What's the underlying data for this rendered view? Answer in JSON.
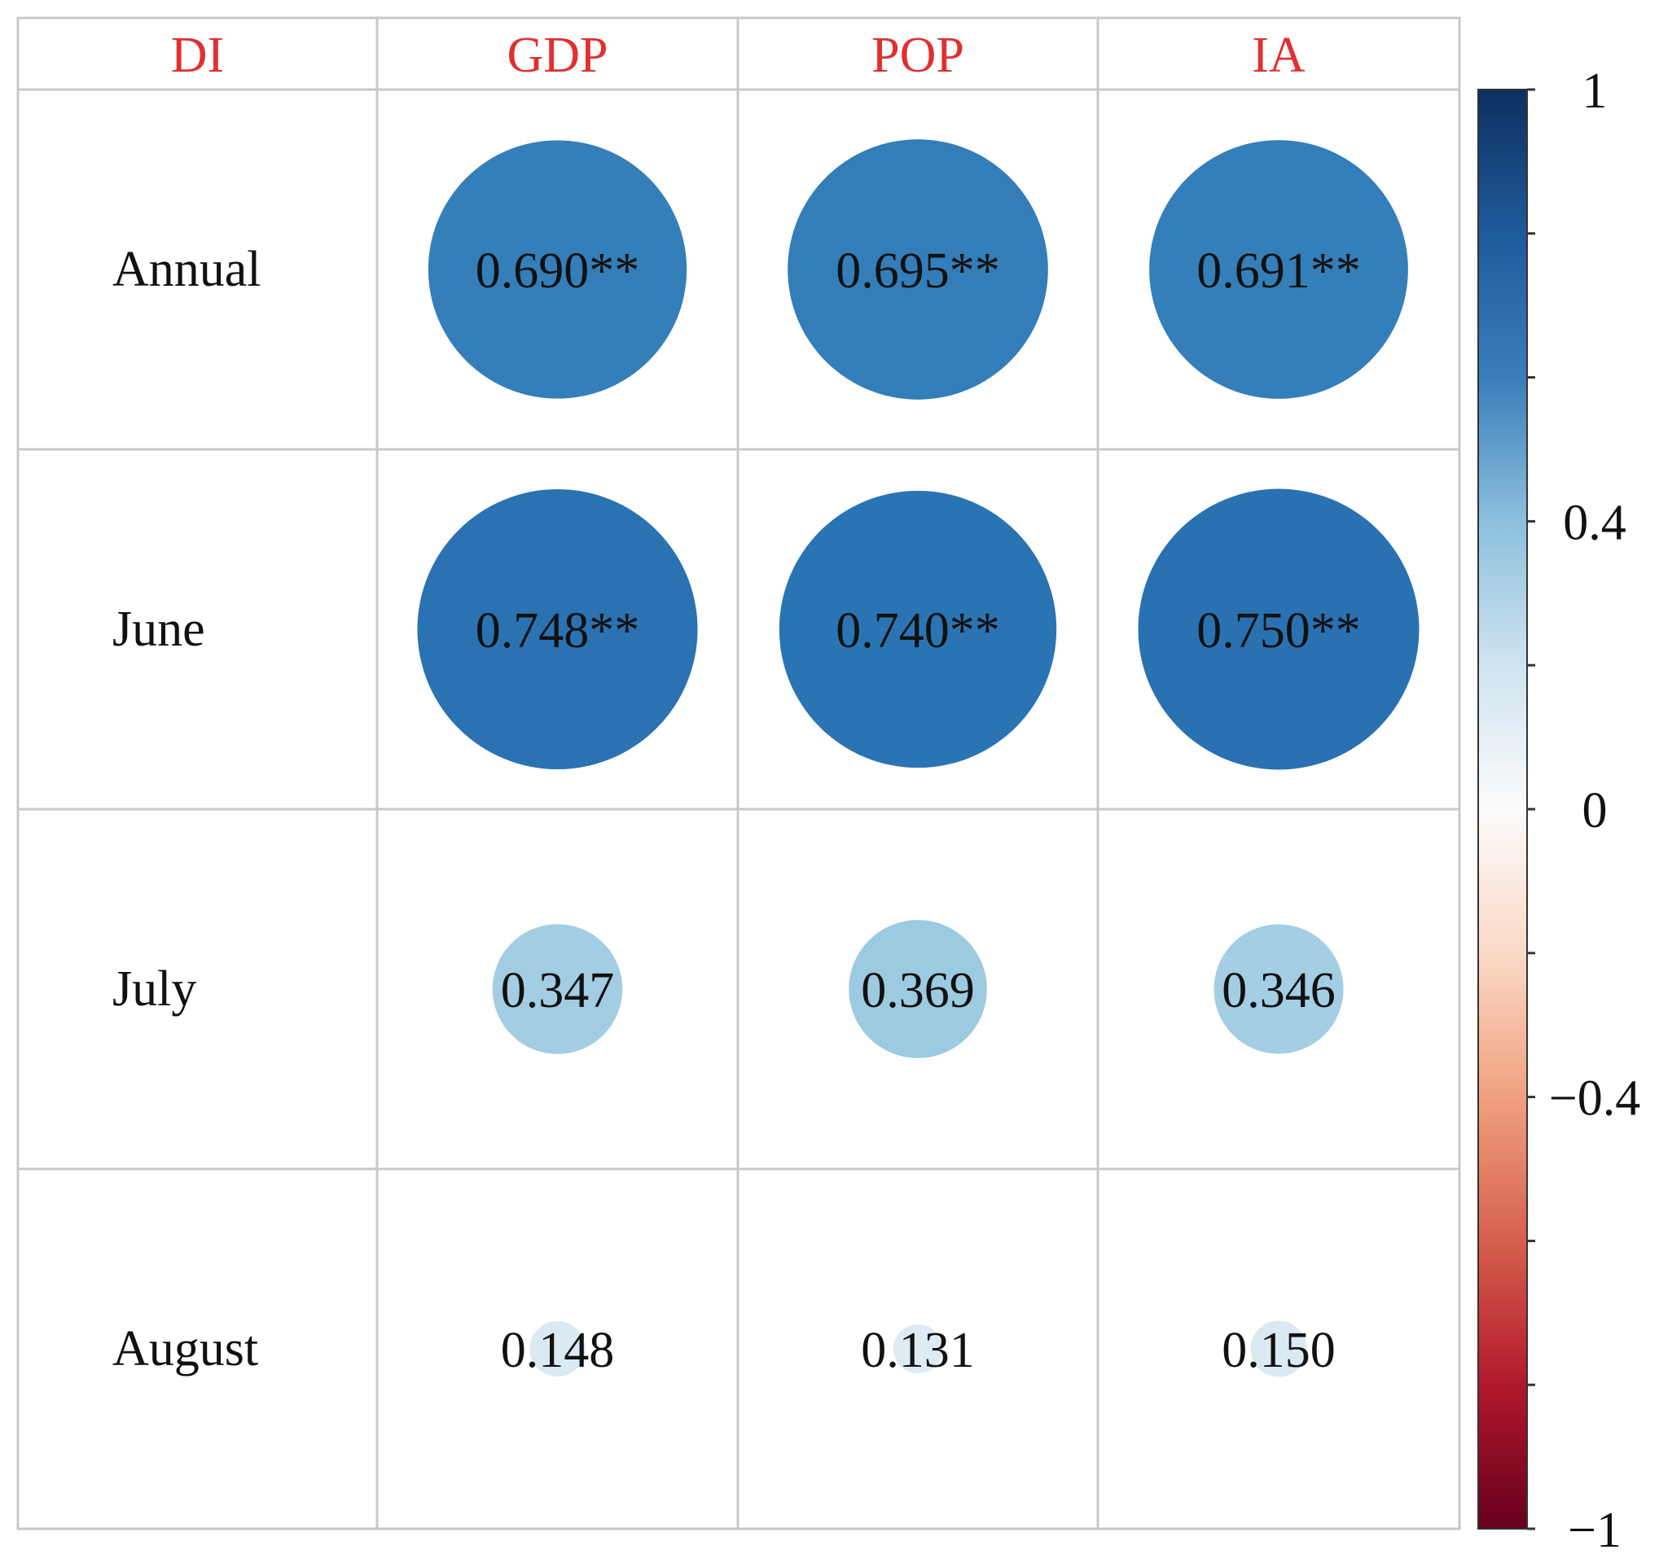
{
  "chart_data": {
    "type": "heatmap",
    "corner_label": "DI",
    "columns": [
      "GDP",
      "POP",
      "IA"
    ],
    "rows": [
      "Annual",
      "June",
      "July",
      "August"
    ],
    "values": [
      [
        0.69,
        0.695,
        0.691
      ],
      [
        0.748,
        0.74,
        0.75
      ],
      [
        0.347,
        0.369,
        0.346
      ],
      [
        0.148,
        0.131,
        0.15
      ]
    ],
    "labels": [
      [
        "0.690**",
        "0.695**",
        "0.691**"
      ],
      [
        "0.748**",
        "0.740**",
        "0.750**"
      ],
      [
        "0.347",
        "0.369",
        "0.346"
      ],
      [
        "0.148",
        "0.131",
        "0.150"
      ]
    ],
    "colorbar": {
      "range": [
        -1,
        1
      ],
      "tick_labels": [
        "1",
        "0.4",
        "0",
        "−0.4",
        "−1"
      ],
      "tick_values": [
        1,
        0.4,
        0,
        -0.4,
        -1
      ],
      "minor_tick_values": [
        1,
        0.8,
        0.6,
        0.4,
        0.2,
        0,
        -0.2,
        -0.4,
        -0.6,
        -0.8,
        -1
      ]
    },
    "colors": {
      "header_text": "#e03030",
      "grid": "#c8c8c8",
      "scale": [
        "#67001f",
        "#b2182b",
        "#d6604d",
        "#f4a582",
        "#fddbc7",
        "#f7f7f7",
        "#d1e5f0",
        "#92c5de",
        "#4393c3",
        "#2166ac",
        "#053061"
      ]
    }
  }
}
